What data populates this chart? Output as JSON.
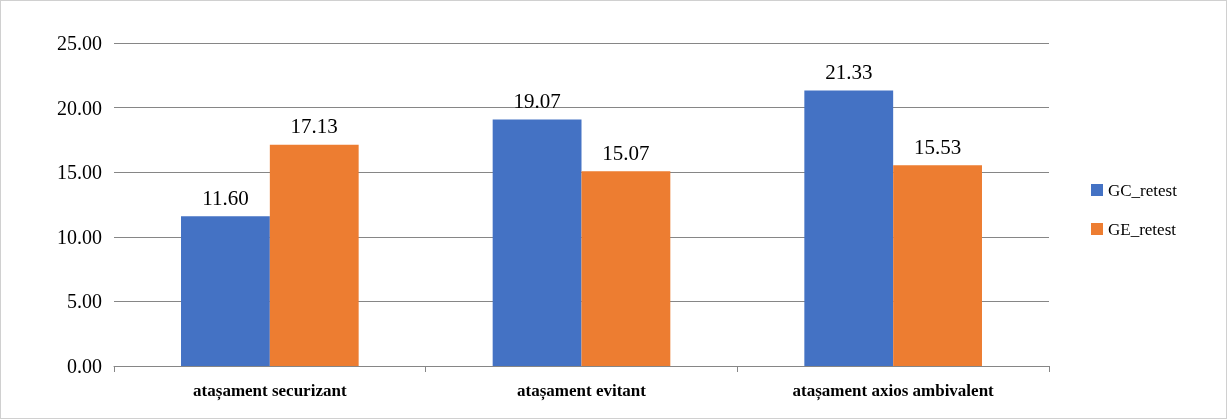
{
  "chart_data": {
    "type": "bar",
    "categories": [
      "atașament securizant",
      "atașament evitant",
      "atașament axios ambivalent"
    ],
    "series": [
      {
        "name": "GC_retest",
        "color": "#4472c4",
        "values": [
          11.6,
          19.07,
          21.33
        ],
        "value_labels": [
          "11.60",
          "19.07",
          "21.33"
        ]
      },
      {
        "name": "GE_retest",
        "color": "#ed7d31",
        "values": [
          17.13,
          15.07,
          15.53
        ],
        "value_labels": [
          "17.13",
          "15.07",
          "15.53"
        ]
      }
    ],
    "ylim": [
      0,
      25
    ],
    "yticks": [
      {
        "value": 0,
        "label": "0.00"
      },
      {
        "value": 5,
        "label": "5.00"
      },
      {
        "value": 10,
        "label": "10.00"
      },
      {
        "value": 15,
        "label": "15.00"
      },
      {
        "value": 20,
        "label": "20.00"
      },
      {
        "value": 25,
        "label": "25.00"
      }
    ],
    "grid": "y",
    "legend": "right"
  }
}
